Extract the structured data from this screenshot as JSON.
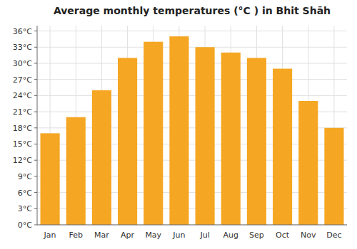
{
  "chart_data": {
    "type": "bar",
    "title": "Average monthly temperatures (°C ) in Bhit Shāh",
    "categories": [
      "Jan",
      "Feb",
      "Mar",
      "Apr",
      "May",
      "Jun",
      "Jul",
      "Aug",
      "Sep",
      "Oct",
      "Nov",
      "Dec"
    ],
    "values": [
      17,
      20,
      25,
      31,
      34,
      35,
      33,
      32,
      31,
      29,
      23,
      18
    ],
    "color": "#F5A623",
    "ylim": [
      0,
      37
    ],
    "yticks": [
      {
        "value": 0,
        "label": "0°C"
      },
      {
        "value": 3,
        "label": "3°C"
      },
      {
        "value": 6,
        "label": "6°C"
      },
      {
        "value": 9,
        "label": "9°C"
      },
      {
        "value": 12,
        "label": "12°C"
      },
      {
        "value": 15,
        "label": "15°C"
      },
      {
        "value": 18,
        "label": "18°C"
      },
      {
        "value": 21,
        "label": "21°C"
      },
      {
        "value": 24,
        "label": "24°C"
      },
      {
        "value": 27,
        "label": "27°C"
      },
      {
        "value": 30,
        "label": "30°C"
      },
      {
        "value": 33,
        "label": "33°C"
      },
      {
        "value": 36,
        "label": "36°C"
      }
    ],
    "grid": true
  }
}
